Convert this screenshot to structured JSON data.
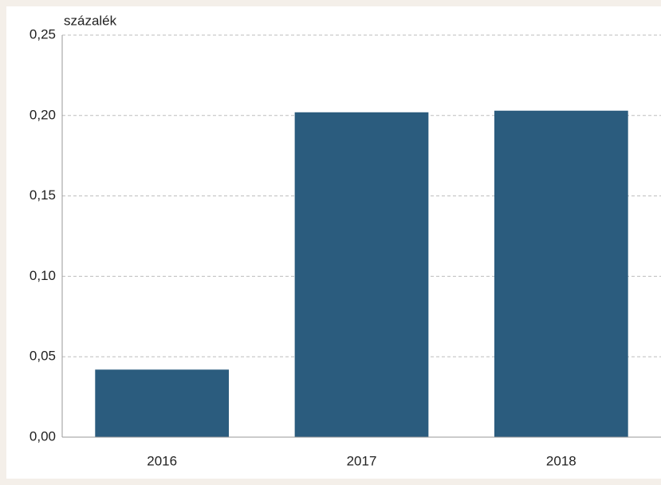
{
  "chart_data": {
    "type": "bar",
    "y_label": "százalék",
    "categories": [
      "2016",
      "2017",
      "2018"
    ],
    "values": [
      0.042,
      0.202,
      0.203
    ],
    "color": "#2b5c7e",
    "ylim": [
      0,
      0.25
    ],
    "yticks": [
      {
        "value": 0,
        "label": "0,00"
      },
      {
        "value": 0.05,
        "label": "0,05"
      },
      {
        "value": 0.1,
        "label": "0,10"
      },
      {
        "value": 0.15,
        "label": "0,15"
      },
      {
        "value": 0.2,
        "label": "0,20"
      },
      {
        "value": 0.25,
        "label": "0,25"
      }
    ],
    "grid": true
  }
}
